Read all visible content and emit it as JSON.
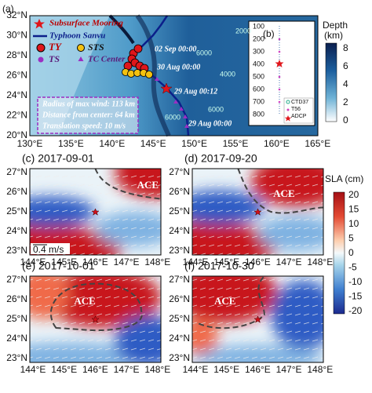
{
  "panel_a": {
    "label": "(a)",
    "lat_labels": [
      "32°N",
      "30°N",
      "28°N",
      "26°N",
      "24°N",
      "22°N",
      "20°N"
    ],
    "lon_labels": [
      "130°E",
      "135°E",
      "140°E",
      "145°E",
      "150°E",
      "155°E",
      "160°E",
      "165°E"
    ],
    "legend": {
      "mooring": "Subsurface Mooring",
      "track": "Typhoon Sanvu",
      "ty": "TY",
      "sts": "STS",
      "ts": "TS",
      "center": "TC Center"
    },
    "times": [
      "02 Sep 00:00",
      "30 Aug 00:00",
      "29 Aug 00:12",
      "29 Aug 00:00"
    ],
    "info": [
      "Radius of max wind: 113 km",
      "Distance from center: 64 km",
      "Translation speed: 10 m/s"
    ],
    "contours": [
      "6000",
      "4000",
      "2000",
      "6000",
      "6000"
    ]
  },
  "depth_colorbar": {
    "title": "Depth",
    "unit": "(km)",
    "ticks": [
      "8",
      "6",
      "4",
      "2",
      "0"
    ]
  },
  "panel_b": {
    "label": "(b)",
    "ticks": [
      "100",
      "200",
      "300",
      "400",
      "500",
      "600",
      "700",
      "800"
    ],
    "legend": [
      "CTD37",
      "T56",
      "ADCP"
    ]
  },
  "sla_panels": [
    {
      "title": "(c) 2017-09-01"
    },
    {
      "title": "(d) 2017-09-20",
      "eddy": "ACE"
    },
    {
      "title": "(e) 2017-10-01",
      "eddy": "ACE"
    },
    {
      "title": "(f) 2017-10-30",
      "eddy": "ACE"
    }
  ],
  "sla_lat_labels": [
    "27°N",
    "26°N",
    "25°N",
    "24°N",
    "23°N"
  ],
  "sla_lon_labels": [
    "144°E",
    "145°E",
    "146°E",
    "147°E",
    "148°E"
  ],
  "panel_c_eddy": "ACE",
  "scale_label": "0.4 m/s",
  "sla_colorbar": {
    "title": "SLA (cm)",
    "ticks": [
      "20",
      "15",
      "10",
      "5",
      "0",
      "-5",
      "-10",
      "-15",
      "-20"
    ]
  }
}
